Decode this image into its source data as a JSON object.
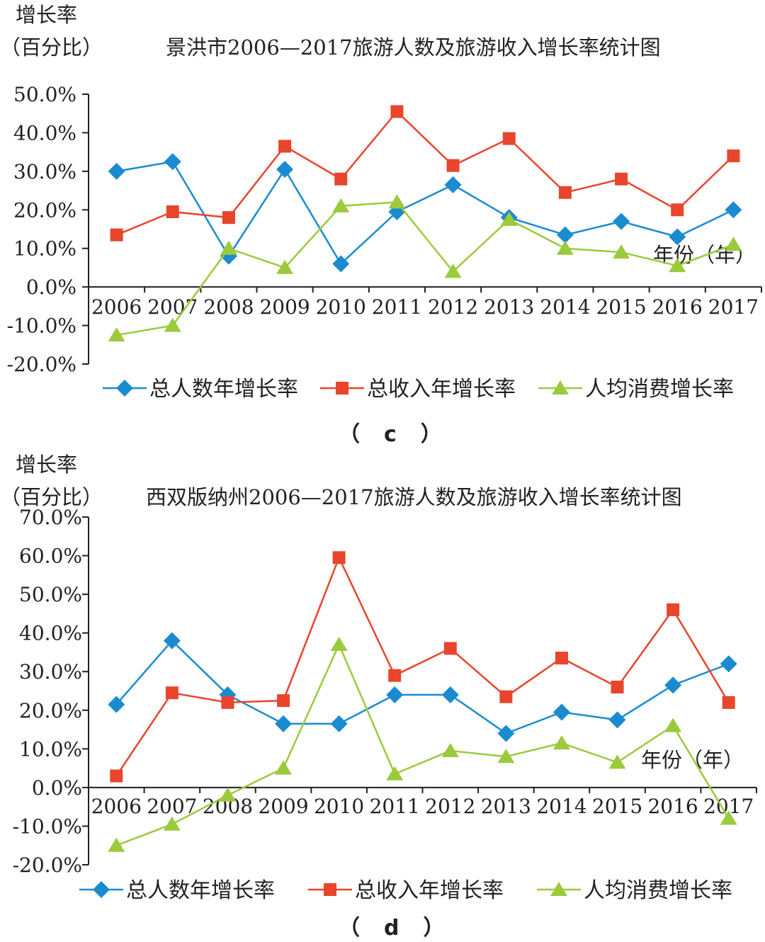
{
  "panels": [
    {
      "ylabel_line1": "增长率",
      "ylabel_line2": "（百分比）",
      "title": "景洪市2006—2017旅游人数及旅游收入增长率统计图",
      "xlabel": "年份（年）",
      "caption": "（　c　）"
    },
    {
      "ylabel_line1": "增长率",
      "ylabel_line2": "（百分比）",
      "title": "西双版纳州2006—2017旅游人数及旅游收入增长率统计图",
      "xlabel": "年份（年）",
      "caption": "（　d　）"
    }
  ],
  "colors": {
    "series_1": "#1b8bd0",
    "series_2": "#e8452c",
    "series_3": "#9bca3c",
    "axis": "#231f20"
  },
  "chart_data": [
    {
      "type": "line",
      "title": "景洪市2006—2017旅游人数及旅游收入增长率统计图",
      "xlabel": "年份（年）",
      "ylabel": "增长率（百分比）",
      "ylim": [
        -20,
        50
      ],
      "yticks": [
        50,
        40,
        30,
        20,
        10,
        0,
        -10,
        -20
      ],
      "ytick_labels": [
        "50.0%",
        "40.0%",
        "30.0%",
        "20.0%",
        "10.0%",
        "0.0%",
        "-10.0%",
        "-20.0%"
      ],
      "categories": [
        "2006",
        "2007",
        "2008",
        "2009",
        "2010",
        "2011",
        "2012",
        "2013",
        "2014",
        "2015",
        "2016",
        "2017"
      ],
      "legend_position": "bottom",
      "series": [
        {
          "name": "总人数年增长率",
          "marker": "diamond",
          "color": "#1b8bd0",
          "values": [
            30.0,
            32.5,
            8.0,
            30.5,
            6.0,
            19.5,
            26.5,
            18.0,
            13.5,
            17.0,
            13.0,
            20.0
          ]
        },
        {
          "name": "总收入年增长率",
          "marker": "square",
          "color": "#e8452c",
          "values": [
            13.5,
            19.5,
            18.0,
            36.5,
            28.0,
            45.5,
            31.5,
            38.5,
            24.5,
            28.0,
            20.0,
            34.0
          ]
        },
        {
          "name": "人均消费增长率",
          "marker": "triangle",
          "color": "#9bca3c",
          "values": [
            -12.5,
            -10.0,
            10.0,
            5.0,
            21.0,
            22.0,
            4.0,
            17.5,
            10.0,
            9.0,
            5.5,
            11.0
          ]
        }
      ]
    },
    {
      "type": "line",
      "title": "西双版纳州2006—2017旅游人数及旅游收入增长率统计图",
      "xlabel": "年份（年）",
      "ylabel": "增长率（百分比）",
      "ylim": [
        -20,
        70
      ],
      "yticks": [
        70,
        60,
        50,
        40,
        30,
        20,
        10,
        0,
        -10,
        -20
      ],
      "ytick_labels": [
        "70.0%",
        "60.0%",
        "50.0%",
        "40.0%",
        "30.0%",
        "20.0%",
        "10.0%",
        "0.0%",
        "-10.0%",
        "-20.0%"
      ],
      "categories": [
        "2006",
        "2007",
        "2008",
        "2009",
        "2010",
        "2011",
        "2012",
        "2013",
        "2014",
        "2015",
        "2016",
        "2017"
      ],
      "legend_position": "bottom",
      "series": [
        {
          "name": "总人数年增长率",
          "marker": "diamond",
          "color": "#1b8bd0",
          "values": [
            21.5,
            38.0,
            24.0,
            16.5,
            16.5,
            24.0,
            24.0,
            14.0,
            19.5,
            17.5,
            26.5,
            32.0
          ]
        },
        {
          "name": "总收入年增长率",
          "marker": "square",
          "color": "#e8452c",
          "values": [
            3.0,
            24.5,
            22.0,
            22.5,
            59.5,
            29.0,
            36.0,
            23.5,
            33.5,
            26.0,
            46.0,
            22.0
          ]
        },
        {
          "name": "人均消费增长率",
          "marker": "triangle",
          "color": "#9bca3c",
          "values": [
            -15.0,
            -9.5,
            -2.0,
            5.0,
            37.0,
            3.5,
            9.5,
            8.0,
            11.5,
            6.5,
            16.0,
            -8.0
          ]
        }
      ]
    }
  ]
}
